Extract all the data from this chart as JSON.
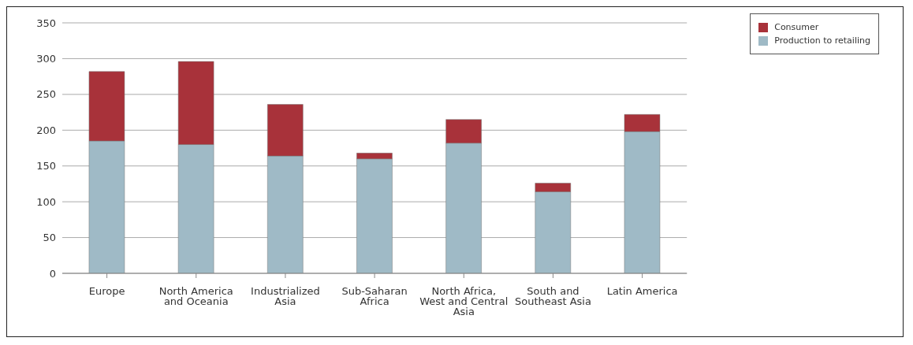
{
  "chart_data": {
    "type": "bar",
    "stacked": true,
    "categories": [
      "Europe",
      "North America and Oceania",
      "Industrialized Asia",
      "Sub-Saharan Africa",
      "North Africa, West and Central Asia",
      "South and Southeast Asia",
      "Latin America"
    ],
    "series": [
      {
        "name": "Production to retailing",
        "color": "#9fbac6",
        "values": [
          185,
          180,
          164,
          160,
          182,
          114,
          198
        ]
      },
      {
        "name": "Consumer",
        "color": "#a8323a",
        "values": [
          97,
          116,
          72,
          8,
          33,
          12,
          24
        ]
      }
    ],
    "ylim": [
      0,
      350
    ],
    "yticks": [
      0,
      50,
      100,
      150,
      200,
      250,
      300,
      350
    ],
    "grid": "y",
    "legend": "top right"
  }
}
